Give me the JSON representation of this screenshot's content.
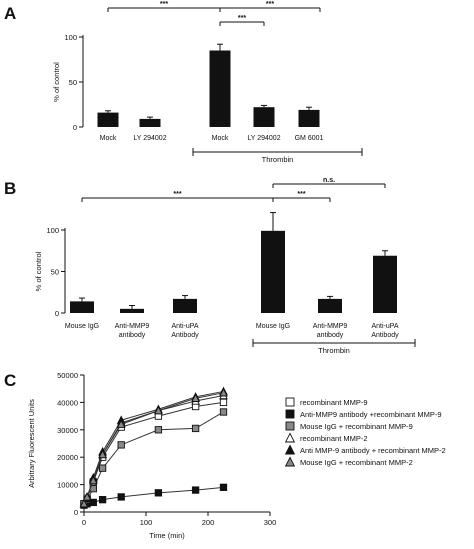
{
  "chart_data": [
    {
      "panel": "A",
      "type": "bar",
      "ylabel": "% of control",
      "ylim": [
        0,
        100
      ],
      "yticks": [
        "0",
        "50",
        "100"
      ],
      "categories": [
        "Mock",
        "LY 294002",
        "Mock",
        "LY 294002",
        "GM 6001"
      ],
      "values": [
        16,
        9,
        85,
        22,
        19
      ],
      "errors": [
        2,
        2,
        7,
        2,
        3
      ],
      "group_label": "Thrombin",
      "significance": [
        "***",
        "***",
        "***"
      ]
    },
    {
      "panel": "B",
      "type": "bar",
      "ylabel": "% of control",
      "ylim": [
        0,
        100
      ],
      "yticks": [
        "0",
        "50",
        "100"
      ],
      "categories": [
        [
          "Mouse IgG"
        ],
        [
          "Anti-MMP9",
          "antibody"
        ],
        [
          "Anti-uPA",
          "Antibody"
        ],
        [
          "Mouse IgG"
        ],
        [
          "Anti-MMP9",
          "antibody"
        ],
        [
          "Anti-uPA",
          "Antibody"
        ]
      ],
      "values": [
        14,
        5,
        17,
        99,
        17,
        69
      ],
      "errors": [
        4,
        4,
        4,
        22,
        3,
        6
      ],
      "group_label": "Thrombin",
      "significance": [
        "***",
        "***",
        "n.s."
      ]
    },
    {
      "panel": "C",
      "type": "line",
      "xlabel": "Time (min)",
      "ylabel": "Arbitrary Fluorescent Units",
      "xlim": [
        0,
        300
      ],
      "ylim": [
        0,
        50000
      ],
      "xticks": [
        "0",
        "100",
        "200",
        "300"
      ],
      "yticks": [
        "0",
        "10000",
        "20000",
        "30000",
        "40000",
        "50000"
      ],
      "x": [
        0,
        5,
        15,
        30,
        60,
        120,
        180,
        225
      ],
      "series": [
        {
          "name": "recombinant MMP-9",
          "marker": "square-open",
          "color": "#ffffff",
          "values": [
            3000,
            5000,
            11000,
            20000,
            31000,
            35000,
            38500,
            40000
          ]
        },
        {
          "name": "Anti-MMP9 antibody +recombinant MMP-9",
          "marker": "square-filled",
          "color": "#111111",
          "values": [
            2500,
            3000,
            3500,
            4500,
            5500,
            7000,
            8000,
            9000
          ]
        },
        {
          "name": "Mouse IgG + recombinant MMP-9",
          "marker": "square-gray",
          "color": "#888888",
          "values": [
            3000,
            4500,
            8500,
            16000,
            24500,
            30000,
            30500,
            36500
          ]
        },
        {
          "name": "recombinant MMP-2",
          "marker": "triangle-open",
          "color": "#ffffff",
          "values": [
            3000,
            5500,
            12000,
            21000,
            32500,
            37000,
            40500,
            42500
          ]
        },
        {
          "name": "Anti MMP-9 antibody + recombinant MMP-2",
          "marker": "triangle-filled",
          "color": "#111111",
          "values": [
            3000,
            5000,
            12500,
            22000,
            33500,
            37500,
            42000,
            44000
          ]
        },
        {
          "name": "Mouse IgG + recombinant MMP-2",
          "marker": "triangle-gray",
          "color": "#888888",
          "values": [
            3000,
            5500,
            11500,
            21000,
            32000,
            37000,
            41500,
            43500
          ]
        }
      ]
    }
  ]
}
